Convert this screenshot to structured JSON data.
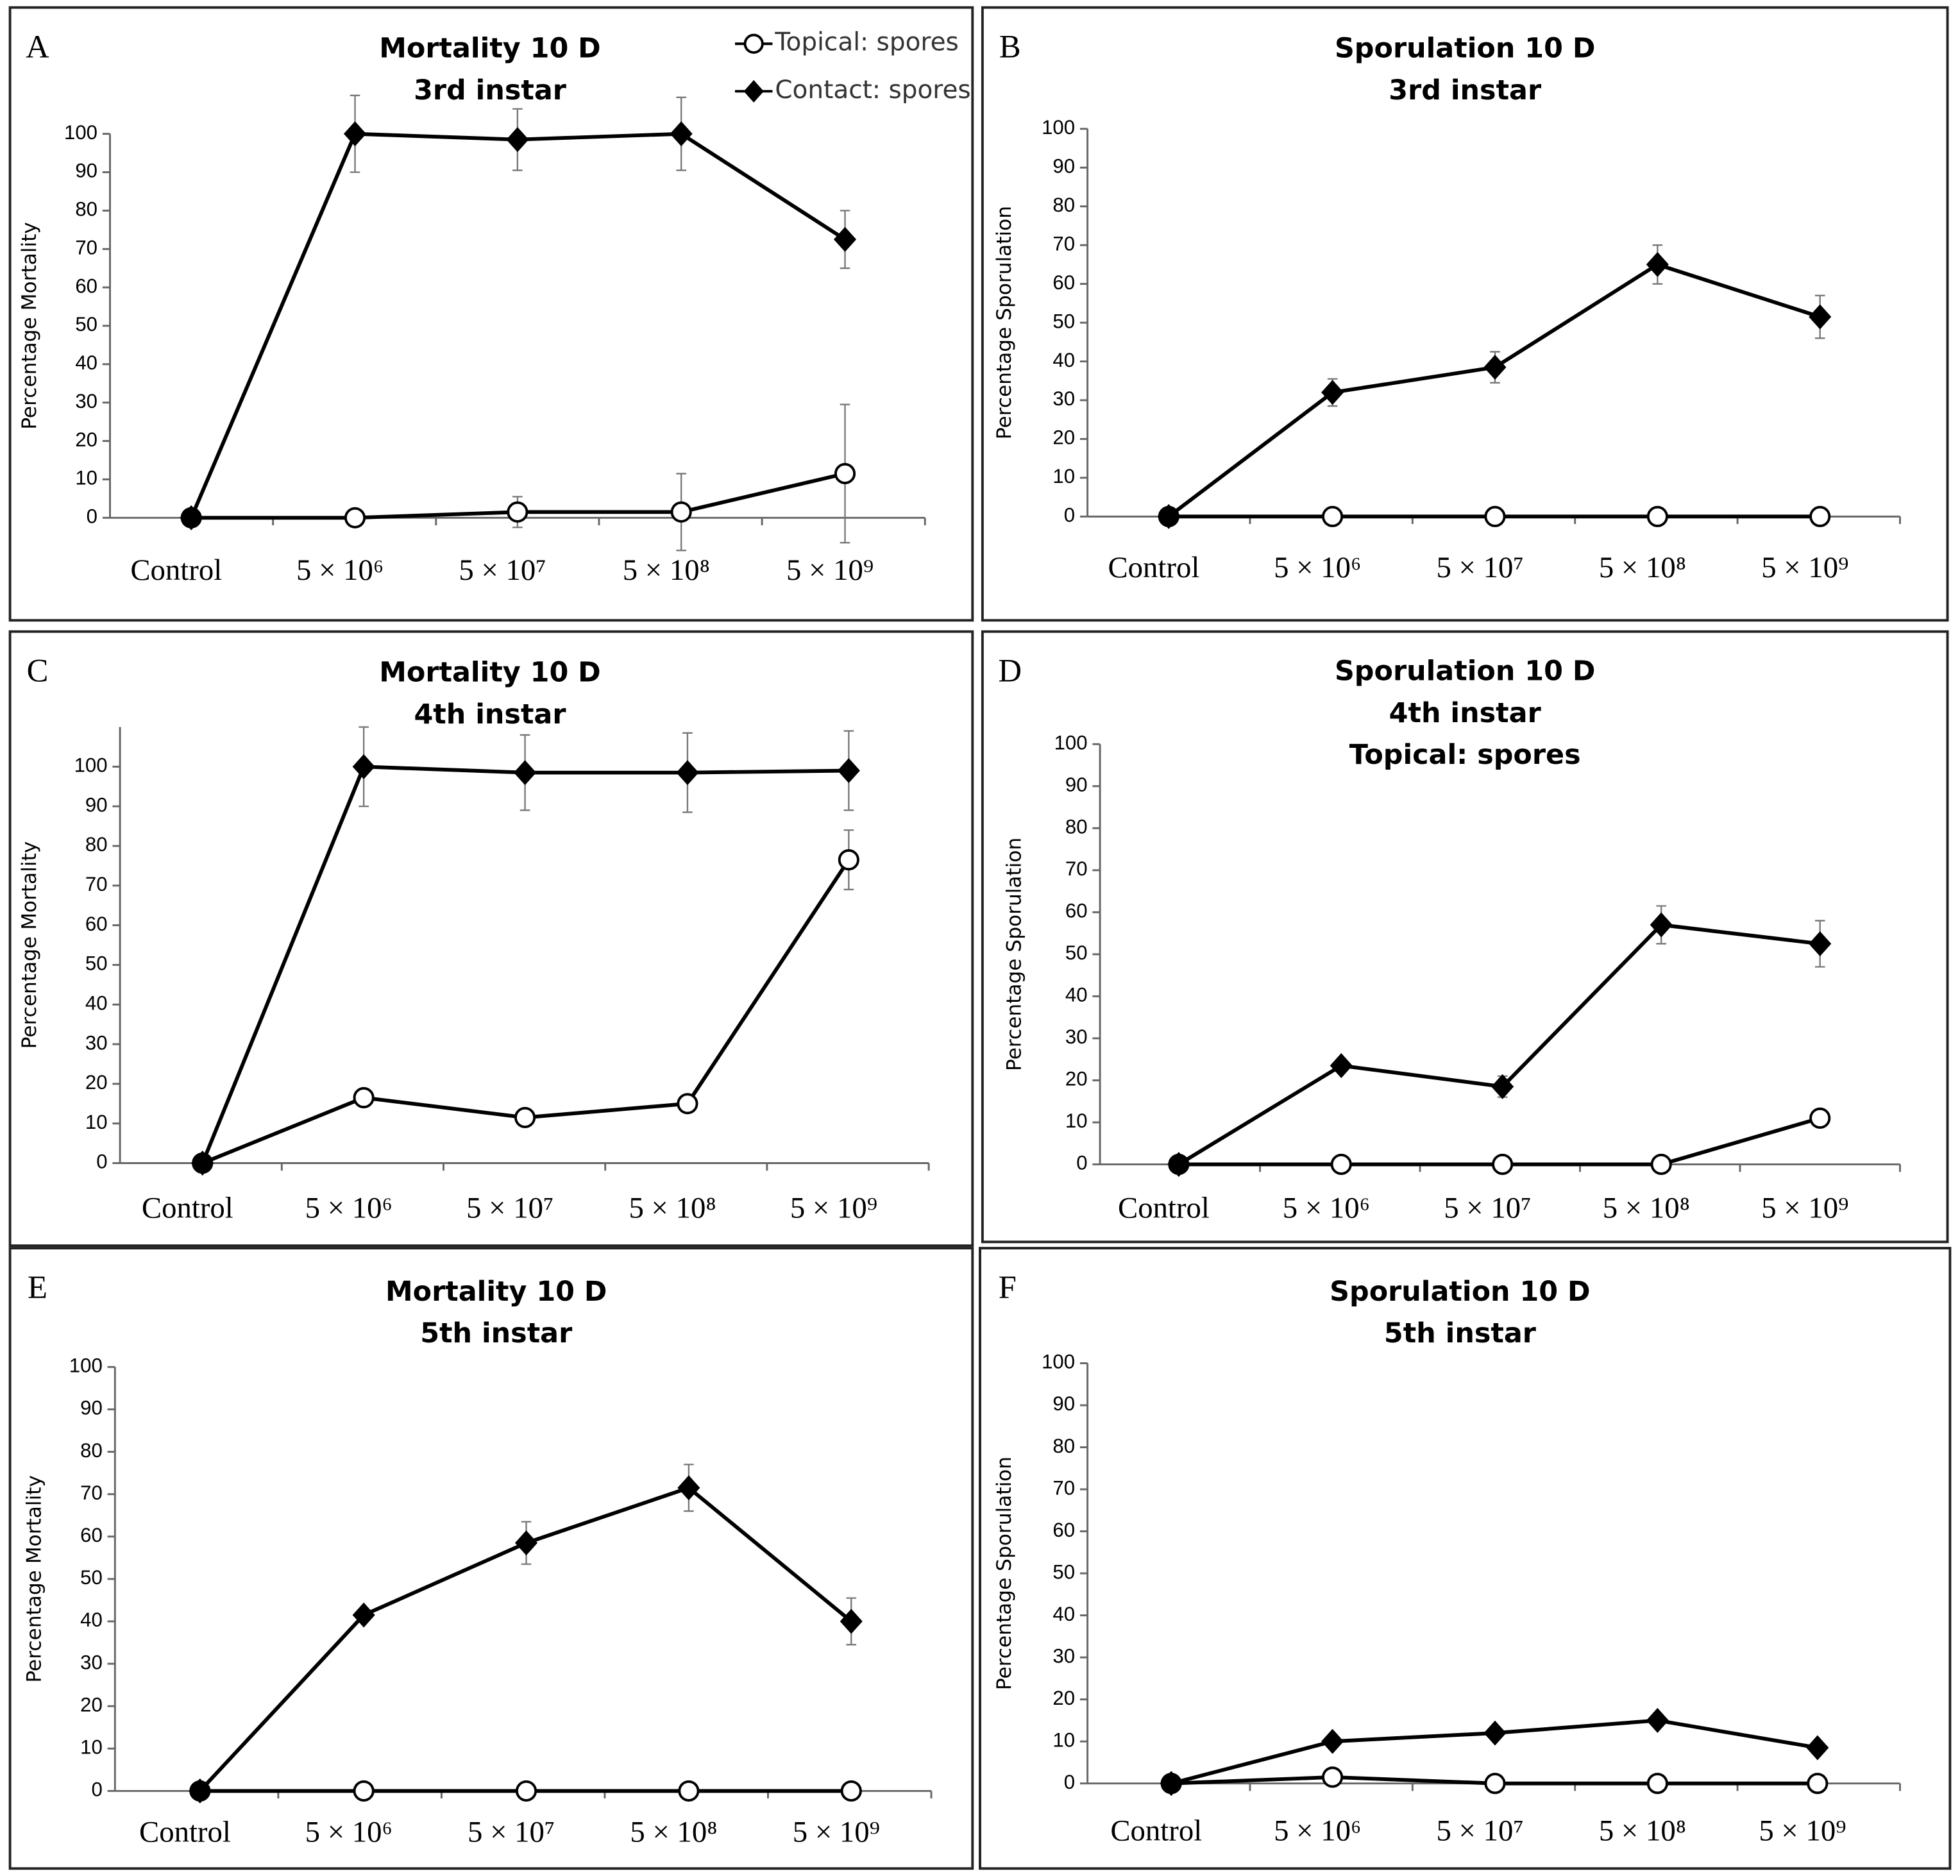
{
  "chart_data": [
    {
      "type": "line",
      "panel_label": "A",
      "title": [
        "Mortality 10 D",
        "3rd instar"
      ],
      "ylabel": "Percentage Mortality",
      "categories": [
        "Control",
        "5 × 10⁶",
        "5 × 10⁷",
        "5 × 10⁸",
        "5 × 10⁹"
      ],
      "series": [
        {
          "name": "Topical: spores",
          "marker": "circle",
          "color": "#000000",
          "values": [
            0,
            0,
            1.5,
            1.5,
            11.5
          ],
          "errors": [
            0,
            0,
            4,
            10,
            18
          ]
        },
        {
          "name": "Contact: spores",
          "marker": "diamond",
          "color": "#000000",
          "values": [
            0,
            100,
            98.5,
            100,
            72.5
          ],
          "errors": [
            0,
            10,
            8,
            9.5,
            7.5
          ]
        }
      ],
      "ylim": [
        0,
        100
      ],
      "yticks": [
        0,
        10,
        20,
        30,
        40,
        50,
        60,
        70,
        80,
        90,
        100
      ],
      "legend": "top-right"
    },
    {
      "type": "line",
      "panel_label": "B",
      "title": [
        "Sporulation 10 D",
        "3rd instar"
      ],
      "ylabel": "Percentage Sporulation",
      "categories": [
        "Control",
        "5 × 10⁶",
        "5 × 10⁷",
        "5 × 10⁸",
        "5 × 10⁹"
      ],
      "series": [
        {
          "marker": "circle",
          "color": "#000000",
          "values": [
            0,
            0,
            0,
            0,
            0
          ],
          "errors": [
            0,
            0,
            0,
            0,
            0
          ]
        },
        {
          "marker": "diamond",
          "color": "#000000",
          "values": [
            0,
            32,
            38.5,
            65,
            51.5
          ],
          "errors": [
            0,
            3.5,
            4,
            5,
            5.5
          ]
        }
      ],
      "ylim": [
        0,
        100
      ],
      "yticks": [
        0,
        10,
        20,
        30,
        40,
        50,
        60,
        70,
        80,
        90,
        100
      ]
    },
    {
      "type": "line",
      "panel_label": "C",
      "title": [
        "Mortality 10 D",
        "4th instar"
      ],
      "ylabel": "Percentage Mortality",
      "categories": [
        "Control",
        "5 × 10⁶",
        "5 × 10⁷",
        "5 × 10⁸",
        "5 × 10⁹"
      ],
      "series": [
        {
          "marker": "circle",
          "color": "#000000",
          "values": [
            0,
            16.5,
            11.5,
            15,
            76.5
          ],
          "errors": [
            0,
            0,
            0,
            0,
            7.5
          ]
        },
        {
          "marker": "diamond",
          "color": "#000000",
          "values": [
            0,
            100,
            98.5,
            98.5,
            99
          ],
          "errors": [
            0,
            10,
            9.5,
            10,
            10
          ]
        }
      ],
      "ylim": [
        0,
        110
      ],
      "yticks": [
        0,
        10,
        20,
        30,
        40,
        50,
        60,
        70,
        80,
        90,
        100
      ]
    },
    {
      "type": "line",
      "panel_label": "D",
      "title": [
        "Sporulation 10 D",
        "4th instar",
        "Topical: spores"
      ],
      "ylabel": "Percentage Sporulation",
      "categories": [
        "Control",
        "5 × 10⁶",
        "5 × 10⁷",
        "5 × 10⁸",
        "5 × 10⁹"
      ],
      "series": [
        {
          "marker": "circle",
          "color": "#000000",
          "values": [
            0,
            0,
            0,
            0,
            11
          ],
          "errors": [
            0,
            0,
            0,
            0,
            0
          ]
        },
        {
          "marker": "diamond",
          "color": "#000000",
          "values": [
            0,
            23.5,
            18.5,
            57,
            52.5
          ],
          "errors": [
            0,
            0,
            2.5,
            4.5,
            5.5
          ]
        }
      ],
      "ylim": [
        0,
        100
      ],
      "yticks": [
        0,
        10,
        20,
        30,
        40,
        50,
        60,
        70,
        80,
        90,
        100
      ]
    },
    {
      "type": "line",
      "panel_label": "E",
      "title": [
        "Mortality 10 D",
        "5th instar"
      ],
      "ylabel": "Percentage Mortality",
      "categories": [
        "Control",
        "5 × 10⁶",
        "5 × 10⁷",
        "5 × 10⁸",
        "5 × 10⁹"
      ],
      "series": [
        {
          "marker": "circle",
          "color": "#000000",
          "values": [
            0,
            0,
            0,
            0,
            0
          ],
          "errors": [
            0,
            0,
            0,
            0,
            0
          ]
        },
        {
          "marker": "diamond",
          "color": "#000000",
          "values": [
            0,
            41.5,
            58.5,
            71.5,
            40
          ],
          "errors": [
            0,
            0,
            5,
            5.5,
            5.5
          ]
        }
      ],
      "ylim": [
        0,
        100
      ],
      "yticks": [
        0,
        10,
        20,
        30,
        40,
        50,
        60,
        70,
        80,
        90,
        100
      ]
    },
    {
      "type": "line",
      "panel_label": "F",
      "title": [
        "Sporulation 10 D",
        "5th instar"
      ],
      "ylabel": "Percentage Sporulation",
      "categories": [
        "Control",
        "5 × 10⁶",
        "5 × 10⁷",
        "5 × 10⁸",
        "5 × 10⁹"
      ],
      "series": [
        {
          "marker": "circle",
          "color": "#000000",
          "values": [
            0,
            1.5,
            0,
            0,
            0
          ],
          "errors": [
            0,
            0,
            0,
            0,
            0
          ]
        },
        {
          "marker": "diamond",
          "color": "#000000",
          "values": [
            0,
            10,
            12,
            15,
            8.5
          ],
          "errors": [
            0,
            0,
            0,
            0,
            0
          ]
        }
      ],
      "ylim": [
        0,
        100
      ],
      "yticks": [
        0,
        10,
        20,
        30,
        40,
        50,
        60,
        70,
        80,
        90,
        100
      ]
    }
  ]
}
